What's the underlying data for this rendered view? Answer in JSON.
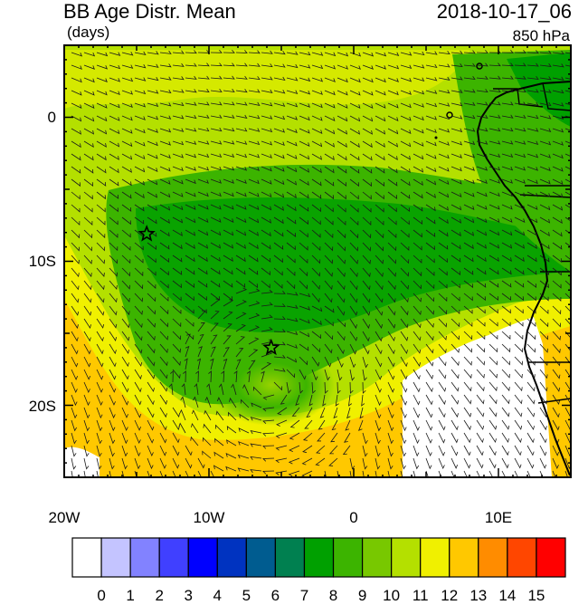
{
  "header": {
    "title": "BB Age Distr. Mean",
    "units": "(days)",
    "datetime": "2018-10-17_06",
    "level": "850 hPa"
  },
  "map": {
    "lat_range": [
      -25,
      5
    ],
    "lon_range": [
      -20,
      15
    ],
    "lat_ticks": [
      "0",
      "10S",
      "20S"
    ],
    "lon_ticks": [
      "20W",
      "10W",
      "0",
      "10E"
    ],
    "markers": [
      {
        "name": "star-marker-1",
        "lon": -14.3,
        "lat": -8.1
      },
      {
        "name": "star-marker-2",
        "lon": -5.7,
        "lat": -16.0
      }
    ]
  },
  "colorbar": {
    "labels": [
      "0",
      "1",
      "2",
      "3",
      "4",
      "5",
      "6",
      "7",
      "8",
      "9",
      "10",
      "11",
      "12",
      "13",
      "14",
      "15"
    ],
    "colors": [
      "#ffffff",
      "#c4c4ff",
      "#8282ff",
      "#4040ff",
      "#0000ff",
      "#0033c0",
      "#005c90",
      "#008050",
      "#00a000",
      "#3cb400",
      "#78c800",
      "#b4e000",
      "#f0f000",
      "#ffc800",
      "#ff8c00",
      "#ff4600",
      "#ff0000"
    ]
  }
}
